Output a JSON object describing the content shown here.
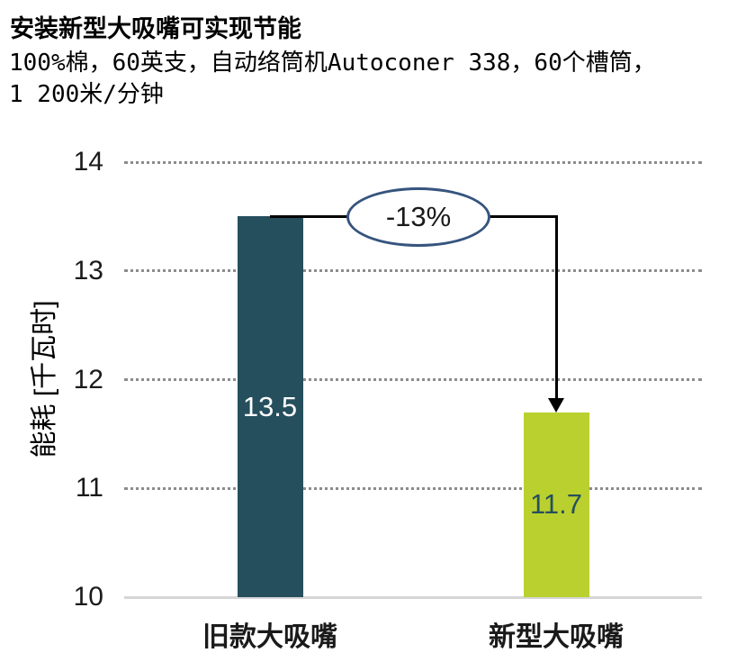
{
  "header": {
    "title": "安装新型大吸嘴可实现节能",
    "subtitle_line1": "100%棉，60英支，自动络筒机Autoconer 338，60个槽筒，",
    "subtitle_line2": "1 200米/分钟"
  },
  "chart_data": {
    "type": "bar",
    "title": "安装新型大吸嘴可实现节能",
    "subtitle": "100%棉，60英支，自动络筒机Autoconer 338，60个槽筒，1 200米/分钟",
    "categories": [
      "旧款大吸嘴",
      "新型大吸嘴"
    ],
    "values": [
      13.5,
      11.7
    ],
    "value_labels": [
      "13.5",
      "11.7"
    ],
    "bar_colors": [
      "#264f5e",
      "#bad02f"
    ],
    "value_label_colors": [
      "#ffffff",
      "#264f5e"
    ],
    "xlabel": "",
    "ylabel": "能耗 [千瓦时]",
    "ylim": [
      10,
      14
    ],
    "yticks": [
      14,
      13,
      12,
      11,
      10
    ],
    "grid": "horizontal-dotted",
    "legend": "none",
    "annotation": {
      "label": "-13%",
      "from_category": "旧款大吸嘴",
      "to_category": "新型大吸嘴",
      "from_value": 13.5,
      "to_value": 11.7
    }
  },
  "colors": {
    "background": "#ffffff",
    "gridline": "#8c8c8c",
    "axis_line": "#d6d6d6",
    "annotation_line": "#000000",
    "ellipse_border": "#36547e",
    "ellipse_fill": "#ffffff",
    "text": "#000000"
  }
}
